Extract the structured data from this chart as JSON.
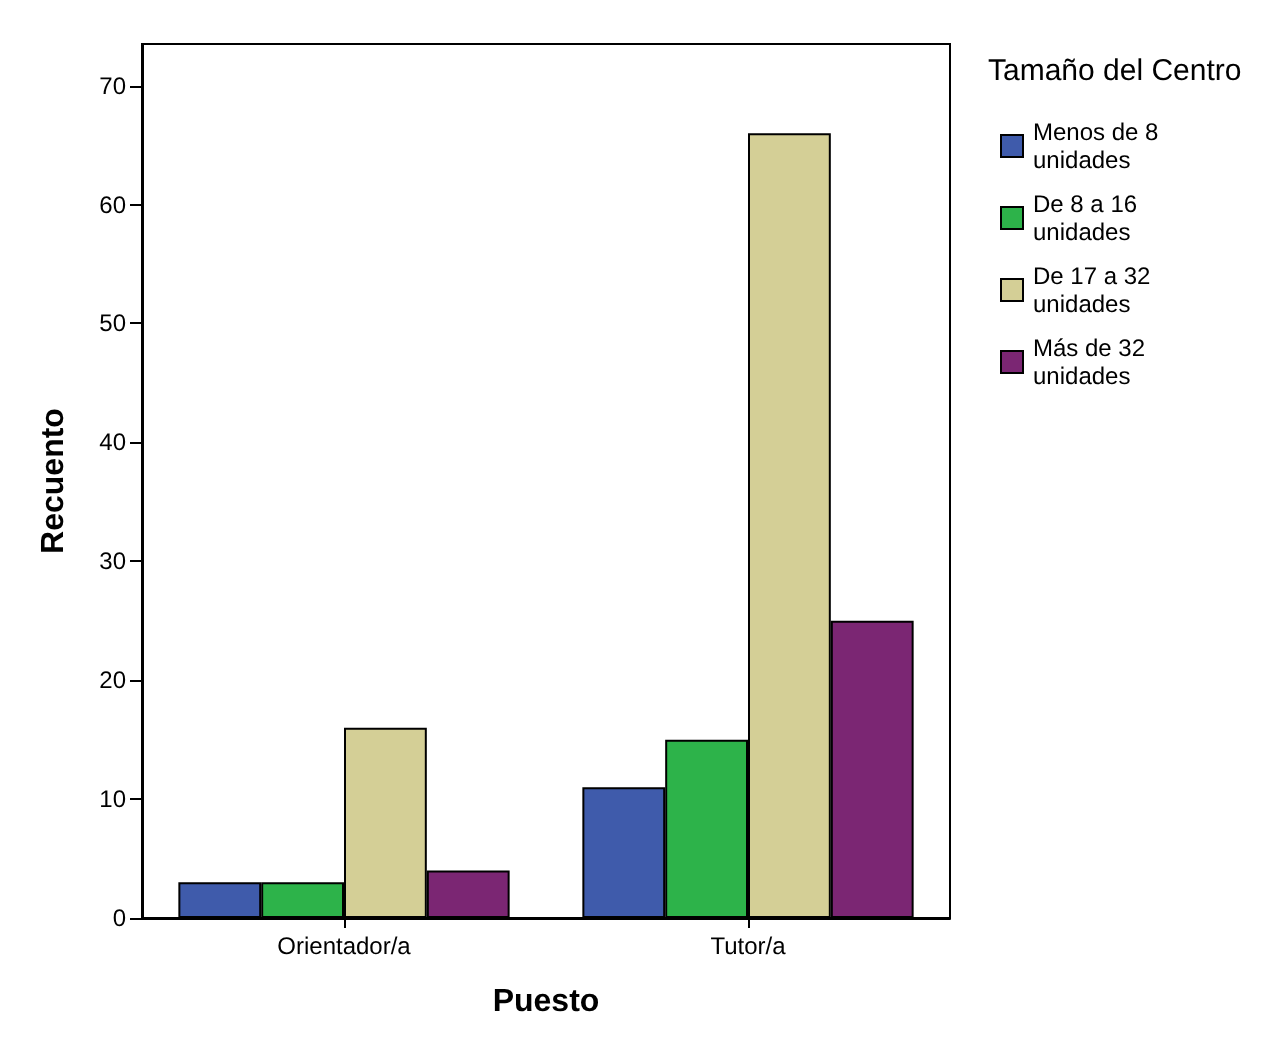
{
  "chart_data": {
    "type": "bar",
    "xlabel": "Puesto",
    "ylabel": "Recuento",
    "legend_title": "Tamaño del Centro",
    "categories": [
      "Orientador/a",
      "Tutor/a"
    ],
    "series": [
      {
        "name": "Menos de 8 unidades",
        "color": "#3f5bab",
        "values": [
          3,
          11
        ]
      },
      {
        "name": "De 8 a 16 unidades",
        "color": "#2db34a",
        "values": [
          3,
          15
        ]
      },
      {
        "name": "De 17 a 32 unidades",
        "color": "#d4cf96",
        "values": [
          16,
          66
        ]
      },
      {
        "name": "Más de 32 unidades",
        "color": "#7b2673",
        "values": [
          4,
          25
        ]
      }
    ],
    "ylim": [
      0,
      73.5
    ],
    "yticks": [
      0,
      10,
      20,
      30,
      40,
      50,
      60,
      70
    ],
    "grid": false,
    "legend": "top right"
  }
}
